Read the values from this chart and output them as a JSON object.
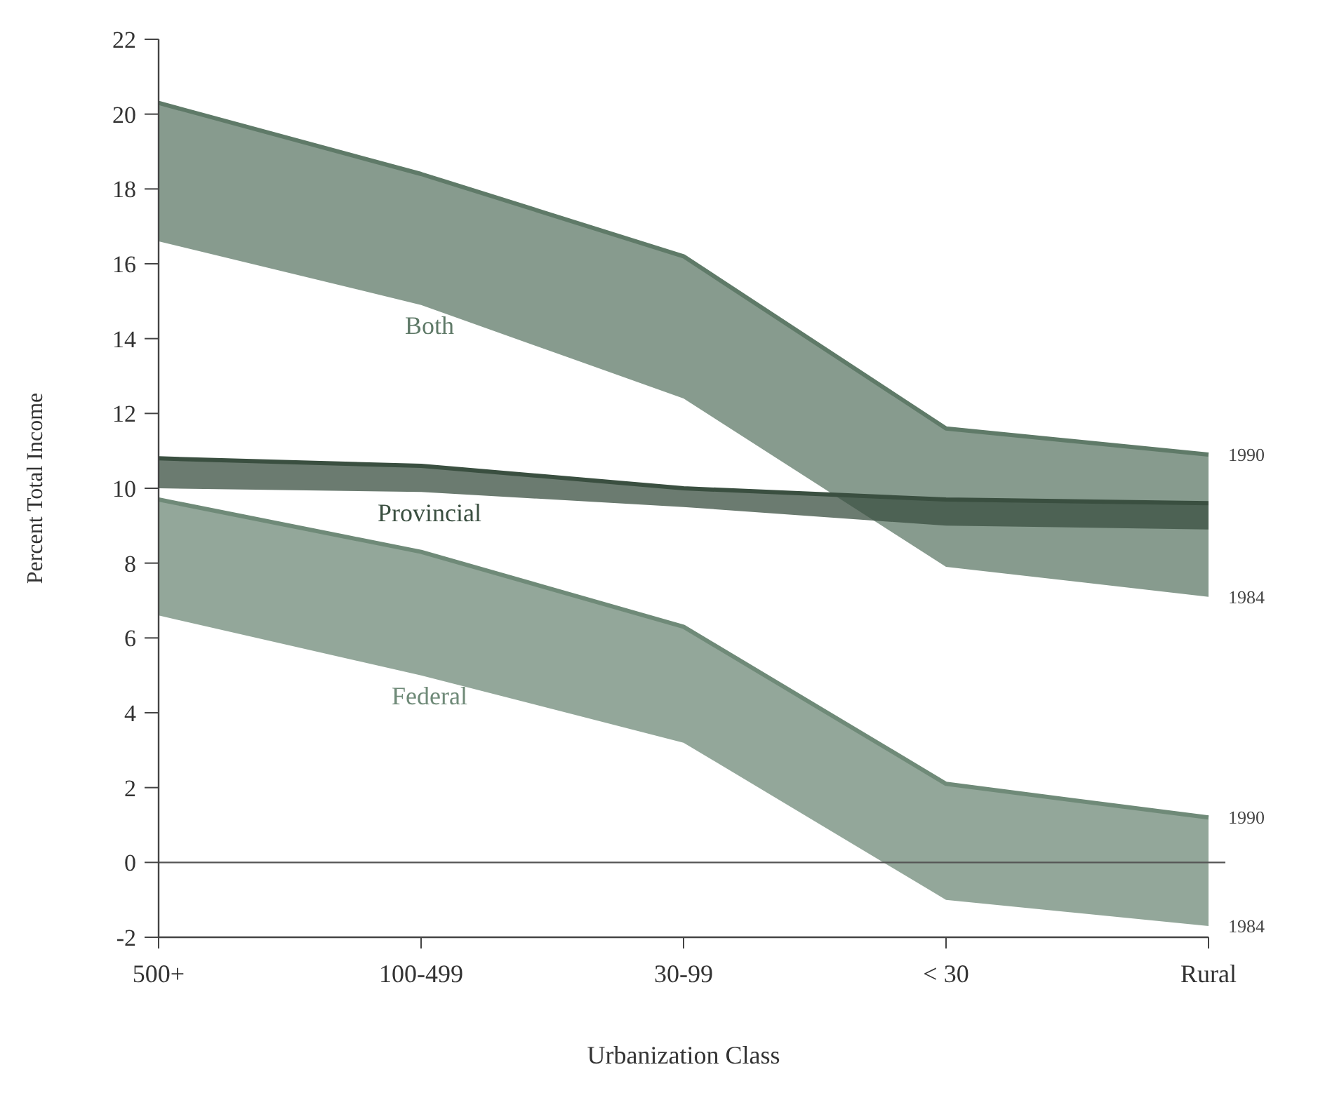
{
  "chart_data": {
    "type": "line",
    "xlabel": "Urbanization Class",
    "ylabel": "Percent Total Income",
    "categories": [
      "500+",
      "100-499",
      "30-99",
      "< 30",
      "Rural"
    ],
    "ylim": [
      -2,
      22
    ],
    "yticks": [
      -2,
      0,
      2,
      4,
      6,
      8,
      10,
      12,
      14,
      16,
      18,
      20,
      22
    ],
    "grid": false,
    "marker": "none",
    "series": [
      {
        "name": "Both",
        "color": "#5f7a68",
        "values": [
          20.3,
          18.4,
          16.2,
          11.6,
          10.9
        ],
        "lower": [
          16.6,
          14.9,
          12.4,
          7.9,
          7.1
        ],
        "upper": [
          20.3,
          18.4,
          16.2,
          11.6,
          10.9
        ]
      },
      {
        "name": "Provincial",
        "color": "#3a4f40",
        "values": [
          10.8,
          10.6,
          10.0,
          9.7,
          9.6
        ],
        "lower": [
          10.0,
          9.9,
          9.5,
          9.0,
          8.9
        ],
        "upper": [
          10.8,
          10.6,
          10.0,
          9.7,
          9.6
        ]
      },
      {
        "name": "Federal",
        "color": "#6f8a78",
        "values": [
          9.7,
          8.3,
          6.3,
          2.1,
          1.2
        ],
        "lower": [
          6.6,
          5.0,
          3.2,
          -1.0,
          -1.7
        ],
        "upper": [
          9.7,
          8.3,
          6.3,
          2.1,
          1.2
        ]
      }
    ],
    "ref_lines": [
      {
        "axis": "y",
        "value": 0,
        "color": "#555555"
      }
    ],
    "annotations": [
      {
        "text": "1990",
        "x": "Rural",
        "y": 10.9
      },
      {
        "text": "1984",
        "x": "Rural",
        "y": 7.1
      },
      {
        "text": "1990",
        "x": "Rural",
        "y": 1.2
      },
      {
        "text": "1984",
        "x": "Rural",
        "y": -1.7
      }
    ]
  }
}
